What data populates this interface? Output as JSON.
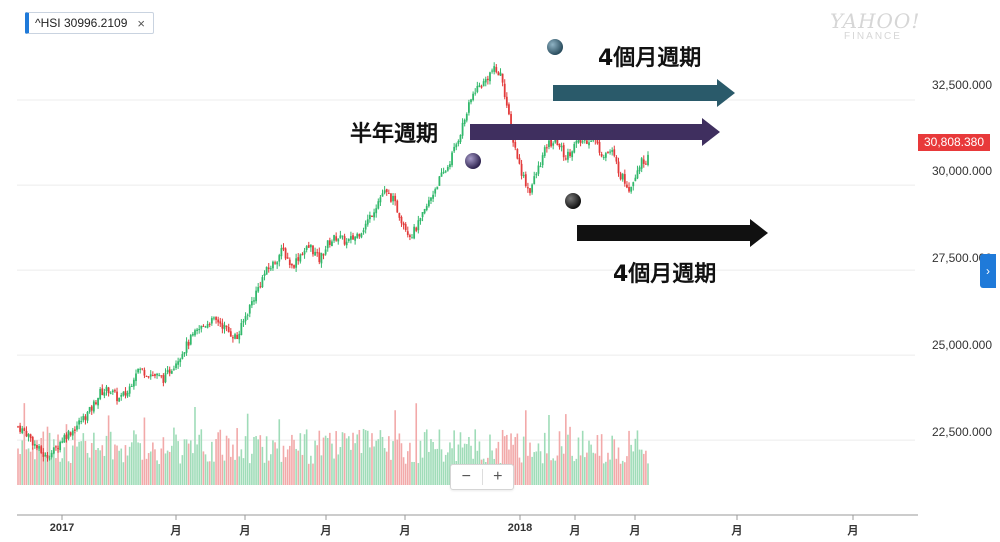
{
  "ticker": {
    "label": "^HSI 30996.2109",
    "close_symbol": "×",
    "close_icon": "close-icon"
  },
  "watermark": {
    "line1": "YAHOO!",
    "line2": "FINANCE"
  },
  "price_tag": "30,808.380",
  "zoom": {
    "minus": "−",
    "plus": "+"
  },
  "side_toggle": "›",
  "annotations": [
    {
      "text": "4個月週期",
      "color": "#2a5a6a"
    },
    {
      "text": "半年週期",
      "color": "#3f2f5f"
    },
    {
      "text": "4個月週期",
      "color": "#111111"
    }
  ],
  "colors": {
    "up": "#31b86b",
    "down": "#e23a3a",
    "vol_up": "#9fdcb8",
    "vol_down": "#f2a9a9"
  },
  "chart_data": {
    "type": "line",
    "series_kind": "candlestick",
    "x_labels": [
      "2017",
      "月",
      "月",
      "月",
      "月",
      "2018",
      "月",
      "月",
      "月",
      "月"
    ],
    "y_ticks": [
      "32,500.000",
      "30,000.000",
      "27,500.000",
      "25,000.000",
      "22,500.000"
    ],
    "y_tick_values": [
      32500,
      30000,
      27500,
      25000,
      22500
    ],
    "ylim": [
      20300,
      35000
    ],
    "close": [
      22900,
      22700,
      22300,
      22000,
      22200,
      22600,
      22800,
      23100,
      23400,
      23900,
      24000,
      23700,
      23900,
      24600,
      24500,
      24400,
      24300,
      24700,
      25100,
      25500,
      25800,
      26000,
      26000,
      25700,
      25500,
      26200,
      26800,
      27400,
      27700,
      28100,
      27600,
      28000,
      28200,
      27800,
      28300,
      28500,
      28300,
      28500,
      28800,
      29300,
      29800,
      29600,
      29000,
      28500,
      28900,
      29500,
      30100,
      30500,
      31200,
      32000,
      32800,
      33000,
      33400,
      33200,
      31600,
      30500,
      29800,
      30500,
      31200,
      31300,
      30800,
      31200,
      31300,
      31400,
      30900,
      31000,
      30300,
      29900,
      30600,
      30800
    ],
    "pivots": [
      {
        "value": 30000,
        "label": "半年週期"
      },
      {
        "value": 33400,
        "label": "4個月週期"
      },
      {
        "value": 29500,
        "label": "4個月週期"
      }
    ],
    "grid": true
  }
}
